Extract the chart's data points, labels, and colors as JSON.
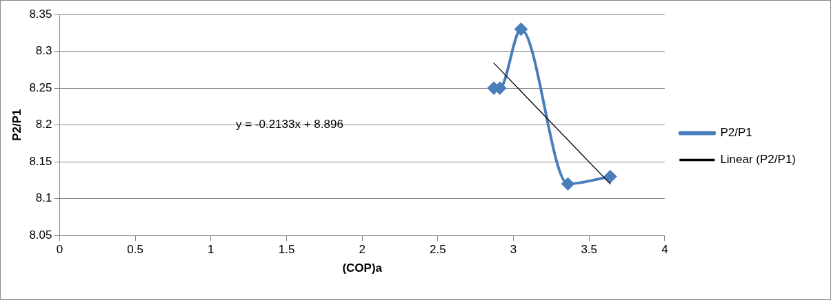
{
  "chart_data": {
    "type": "line",
    "xlabel": "(COP)a",
    "ylabel": "P2/P1",
    "series": [
      {
        "name": "P2/P1",
        "color": "#4a7ebb",
        "x": [
          2.87,
          2.91,
          3.05,
          3.36,
          3.64
        ],
        "values": [
          8.25,
          8.25,
          8.33,
          8.12,
          8.13
        ],
        "marker": "diamond"
      },
      {
        "name": "Linear (P2/P1)",
        "color": "#000000",
        "x": [
          2.87,
          3.64
        ],
        "values": [
          8.284,
          8.12
        ],
        "marker": "none"
      }
    ],
    "xlim": [
      0,
      4
    ],
    "xticks": [
      0,
      0.5,
      1,
      1.5,
      2,
      2.5,
      3,
      3.5,
      4
    ],
    "ylim": [
      8.05,
      8.35
    ],
    "yticks": [
      8.05,
      8.1,
      8.15,
      8.2,
      8.25,
      8.3,
      8.35
    ],
    "grid": "y",
    "legend": "right",
    "line_style": "solid",
    "annotations": [
      "y = -0.2133x + 8.896"
    ]
  }
}
